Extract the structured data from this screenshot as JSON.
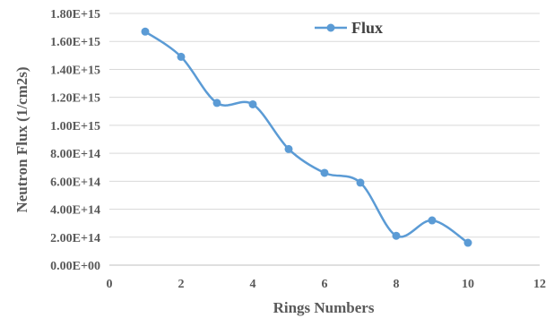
{
  "chart_data": {
    "type": "line",
    "title": "",
    "xlabel": "Rings Numbers",
    "ylabel": "Neutron Flux  (1/cm2s)",
    "xlim": [
      0,
      12
    ],
    "ylim": [
      0,
      1800000000000000.0
    ],
    "x_ticks": [
      0,
      2,
      4,
      6,
      8,
      10,
      12
    ],
    "x_tick_labels": [
      "0",
      "2",
      "4",
      "6",
      "8",
      "10",
      "12"
    ],
    "y_ticks": [
      0,
      200000000000000.0,
      400000000000000.0,
      600000000000000.0,
      800000000000000.0,
      1000000000000000.0,
      1200000000000000.0,
      1400000000000000.0,
      1600000000000000.0,
      1800000000000000.0
    ],
    "y_tick_labels": [
      "0.00E+00",
      "2.00E+14",
      "4.00E+14",
      "6.00E+14",
      "8.00E+14",
      "1.00E+15",
      "1.20E+15",
      "1.40E+15",
      "1.60E+15",
      "1.80E+15"
    ],
    "grid": true,
    "smooth": true,
    "legend_position": "top-center",
    "series": [
      {
        "name": "Flux",
        "color": "#5b9bd5",
        "x": [
          1,
          2,
          3,
          4,
          5,
          6,
          7,
          8,
          9,
          10
        ],
        "y": [
          1670000000000000.0,
          1490000000000000.0,
          1160000000000000.0,
          1150000000000000.0,
          830000000000000.0,
          660000000000000.0,
          590000000000000.0,
          210000000000000.0,
          320000000000000.0,
          160000000000000.0
        ]
      }
    ]
  }
}
